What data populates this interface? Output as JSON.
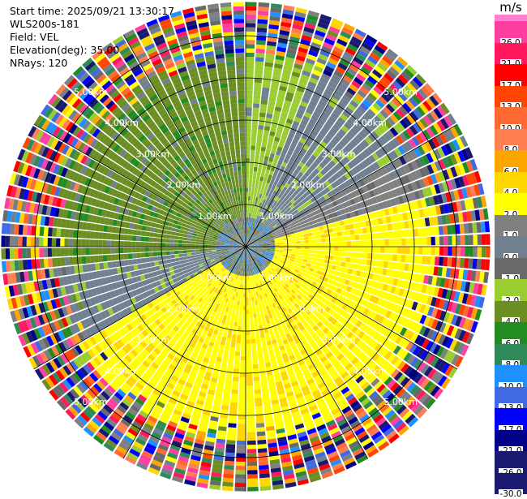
{
  "header": {
    "start_time": "Start time: 2025/09/21 13:30:17",
    "site": "WLS200s-181",
    "field": "Field: VEL",
    "elevation": "Elevation(deg): 35.00",
    "nrays": "NRays: 120"
  },
  "colorbar": {
    "unit": "m/s",
    "levels": [
      {
        "label": "26.0",
        "color": "#ff3fa0"
      },
      {
        "label": "21.0",
        "color": "#ff1a60"
      },
      {
        "label": "17.0",
        "color": "#ff0000"
      },
      {
        "label": "13.0",
        "color": "#ff4500"
      },
      {
        "label": "10.0",
        "color": "#ff6a33"
      },
      {
        "label": "8.0",
        "color": "#ff7f50"
      },
      {
        "label": "6.0",
        "color": "#ffa500"
      },
      {
        "label": "4.0",
        "color": "#ffd700"
      },
      {
        "label": "2.0",
        "color": "#ffff00"
      },
      {
        "label": "1.0",
        "color": "#808080"
      },
      {
        "label": "0.0",
        "color": "#708090"
      },
      {
        "label": "-1.0",
        "color": "#696969"
      },
      {
        "label": "-2.0",
        "color": "#9acd32"
      },
      {
        "label": "-4.0",
        "color": "#6b8e23"
      },
      {
        "label": "-6.0",
        "color": "#228b22"
      },
      {
        "label": "-8.0",
        "color": "#2e8b57"
      },
      {
        "label": "-10.0",
        "color": "#1e90ff"
      },
      {
        "label": "-13.0",
        "color": "#4169e1"
      },
      {
        "label": "-17.0",
        "color": "#0000ff"
      },
      {
        "label": "-21.0",
        "color": "#00008b"
      },
      {
        "label": "-26.0",
        "color": "#191970"
      },
      {
        "label": "-30.0",
        "color": "#191970"
      }
    ],
    "top_cap_color": "#ff80d0"
  },
  "chart_data": {
    "type": "heatmap",
    "projection": "polar-ppi",
    "field": "VEL",
    "units": "m/s",
    "n_rays": 120,
    "range_rings_km": [
      1.0,
      2.0,
      3.0,
      4.0,
      5.0
    ],
    "ring_labels": [
      "1.00km",
      "2.00km",
      "3.00km",
      "4.00km",
      "5.00km"
    ],
    "max_range_km": 5.8,
    "regions": [
      {
        "azimuth_deg": [
          0,
          20
        ],
        "value_ms": -2.0
      },
      {
        "azimuth_deg": [
          20,
          60
        ],
        "value_ms": 0.0
      },
      {
        "azimuth_deg": [
          60,
          75
        ],
        "value_ms": 1.0
      },
      {
        "azimuth_deg": [
          75,
          240
        ],
        "value_ms": 2.0
      },
      {
        "azimuth_deg": [
          240,
          265
        ],
        "value_ms": 0.0
      },
      {
        "azimuth_deg": [
          265,
          360
        ],
        "value_ms": -4.0
      }
    ]
  }
}
